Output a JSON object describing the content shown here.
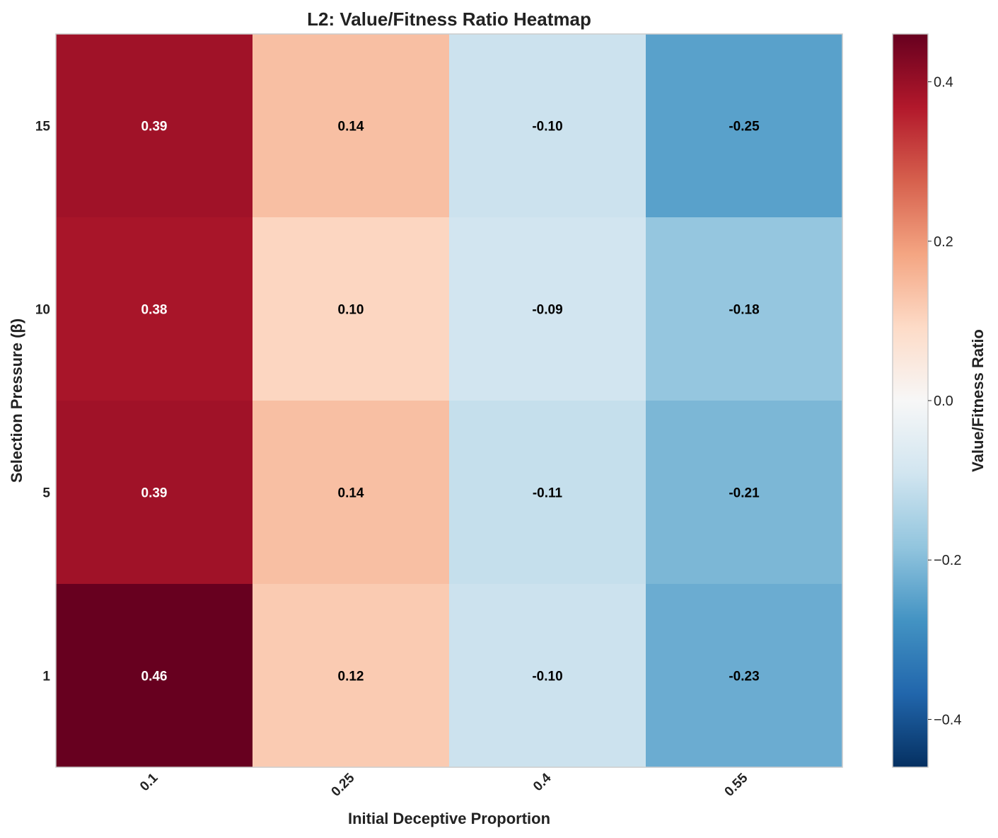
{
  "chart_data": {
    "type": "heatmap",
    "title": "L2: Value/Fitness Ratio Heatmap",
    "xlabel": "Initial Deceptive Proportion",
    "ylabel": "Selection Pressure (β)",
    "x_categories": [
      "0.1",
      "0.25",
      "0.4",
      "0.55"
    ],
    "y_categories": [
      "15",
      "10",
      "5",
      "1"
    ],
    "values": [
      [
        0.39,
        0.14,
        -0.1,
        -0.25
      ],
      [
        0.38,
        0.1,
        -0.09,
        -0.18
      ],
      [
        0.39,
        0.14,
        -0.11,
        -0.21
      ],
      [
        0.46,
        0.12,
        -0.1,
        -0.23
      ]
    ],
    "cell_labels": [
      [
        "0.39",
        "0.14",
        "-0.10",
        "-0.25"
      ],
      [
        "0.38",
        "0.10",
        "-0.09",
        "-0.18"
      ],
      [
        "0.39",
        "0.14",
        "-0.11",
        "-0.21"
      ],
      [
        "0.46",
        "0.12",
        "-0.10",
        "-0.23"
      ]
    ],
    "colormap": "RdBu_r",
    "vmin": -0.46,
    "vmax": 0.46,
    "colorbar": {
      "label": "Value/Fitness Ratio",
      "ticks": [
        -0.4,
        -0.2,
        0.0,
        0.2,
        0.4
      ],
      "tick_labels": [
        "−0.4",
        "−0.2",
        "0.0",
        "0.2",
        "0.4"
      ]
    },
    "grid": false
  },
  "colors": {
    "text_dark": "#222222",
    "cell_text_light": "#ffffff",
    "cell_text_dark": "#000000",
    "frame": "#cccccc"
  }
}
